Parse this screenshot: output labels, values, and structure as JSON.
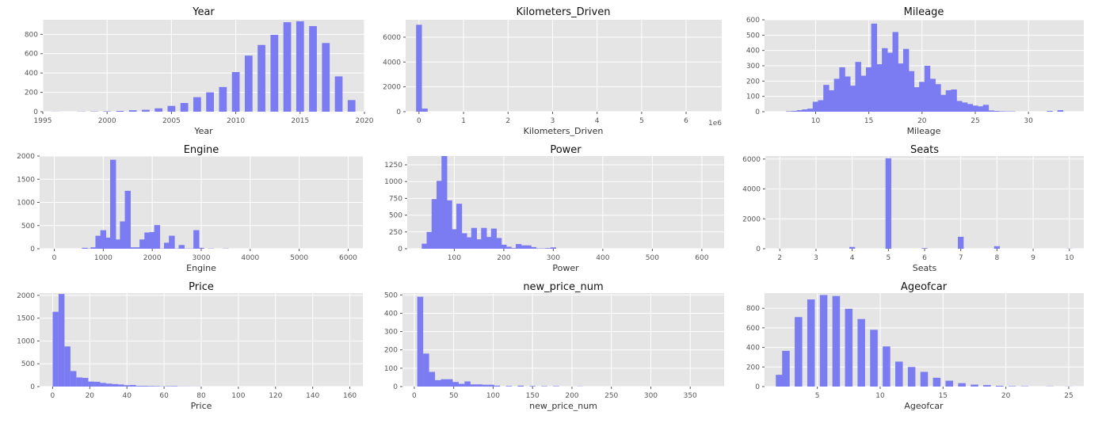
{
  "figure": {
    "background": "#ffffff",
    "panel_background": "#e5e5e5",
    "grid_color": "#ffffff",
    "bar_color": "#7b7bf2"
  },
  "chart_data": [
    {
      "type": "bar",
      "title": "Year",
      "xlabel": "Year",
      "xlim": [
        1995,
        2020
      ],
      "ylim": [
        0,
        950
      ],
      "xticks": [
        1995,
        2000,
        2005,
        2010,
        2015,
        2020
      ],
      "yticks": [
        0,
        200,
        400,
        600,
        800
      ],
      "bin_width": 0.6,
      "x": [
        1996,
        1998,
        1999,
        2000,
        2001,
        2002,
        2003,
        2004,
        2005,
        2006,
        2007,
        2008,
        2009,
        2010,
        2011,
        2012,
        2013,
        2014,
        2015,
        2016,
        2017,
        2018,
        2019
      ],
      "values": [
        1,
        2,
        3,
        4,
        8,
        15,
        20,
        35,
        60,
        90,
        150,
        200,
        255,
        410,
        580,
        690,
        795,
        925,
        935,
        885,
        710,
        365,
        120
      ]
    },
    {
      "type": "bar",
      "title": "Kilometers_Driven",
      "xlabel": "Kilometers_Driven",
      "axis_offset_text": "1e6",
      "xlim": [
        -0.3,
        6.8
      ],
      "ylim": [
        0,
        7400
      ],
      "xticks": [
        0,
        1,
        2,
        3,
        4,
        5,
        6
      ],
      "yticks": [
        0,
        2000,
        4000,
        6000
      ],
      "bin_width": 0.13,
      "x": [
        0.0,
        0.13
      ],
      "values": [
        7000,
        250
      ]
    },
    {
      "type": "bar",
      "title": "Mileage",
      "xlabel": "Mileage",
      "xlim": [
        5.2,
        35.2
      ],
      "ylim": [
        0,
        600
      ],
      "xticks": [
        10,
        15,
        20,
        25,
        30
      ],
      "yticks": [
        0,
        100,
        200,
        300,
        400,
        500,
        600
      ],
      "bin_width": 0.55,
      "x": [
        7.5,
        8.0,
        8.5,
        9.0,
        9.5,
        10.0,
        10.5,
        11.0,
        11.5,
        12.0,
        12.5,
        13.0,
        13.5,
        14.0,
        14.5,
        15.0,
        15.5,
        16.0,
        16.5,
        17.0,
        17.5,
        18.0,
        18.5,
        19.0,
        19.5,
        20.0,
        20.5,
        21.0,
        21.5,
        22.0,
        22.5,
        23.0,
        23.5,
        24.0,
        24.5,
        25.0,
        25.5,
        26.0,
        26.5,
        27.0,
        27.5,
        28.0,
        28.5,
        32.0,
        33.0
      ],
      "values": [
        3,
        5,
        10,
        15,
        20,
        65,
        75,
        175,
        140,
        215,
        290,
        230,
        170,
        325,
        235,
        290,
        575,
        310,
        415,
        385,
        520,
        315,
        410,
        265,
        160,
        195,
        300,
        215,
        180,
        110,
        140,
        145,
        70,
        60,
        50,
        40,
        35,
        45,
        8,
        5,
        3,
        2,
        2,
        5,
        10
      ],
      "x_start": 7.5,
      "bin_step": 0.5
    },
    {
      "type": "bar",
      "title": "Engine",
      "xlabel": "Engine",
      "xlim": [
        -300,
        6300
      ],
      "ylim": [
        0,
        2000
      ],
      "xticks": [
        0,
        1000,
        2000,
        3000,
        4000,
        5000,
        6000
      ],
      "yticks": [
        0,
        500,
        1000,
        1500,
        2000
      ],
      "bin_width": 120,
      "x": [
        624,
        750,
        800,
        900,
        1000,
        1100,
        1200,
        1300,
        1400,
        1500,
        1600,
        1700,
        1800,
        1900,
        2000,
        2100,
        2200,
        2300,
        2400,
        2500,
        2600,
        2700,
        2800,
        2900,
        3000,
        3200,
        3500
      ],
      "values": [
        20,
        5,
        30,
        280,
        400,
        240,
        1920,
        200,
        590,
        1250,
        30,
        30,
        200,
        350,
        360,
        510,
        5,
        130,
        280,
        5,
        80,
        5,
        5,
        400,
        20,
        5,
        5
      ]
    },
    {
      "type": "bar",
      "title": "Power",
      "xlabel": "Power",
      "xlim": [
        5,
        645
      ],
      "ylim": [
        0,
        1380
      ],
      "xticks": [
        100,
        200,
        300,
        400,
        500,
        600
      ],
      "yticks": [
        0,
        250,
        500,
        750,
        1000,
        1250
      ],
      "bin_width": 11.5,
      "x": [
        40,
        50,
        60,
        70,
        80,
        90,
        100,
        110,
        120,
        130,
        140,
        150,
        160,
        170,
        180,
        190,
        200,
        210,
        220,
        230,
        240,
        250,
        260,
        270,
        280,
        290,
        300
      ],
      "values": [
        75,
        250,
        740,
        1010,
        1380,
        720,
        290,
        670,
        230,
        170,
        310,
        140,
        310,
        175,
        300,
        160,
        60,
        30,
        10,
        70,
        50,
        50,
        25,
        5,
        5,
        10,
        20
      ]
    },
    {
      "type": "bar",
      "title": "Seats",
      "xlabel": "Seats",
      "xlim": [
        1.6,
        10.4
      ],
      "ylim": [
        0,
        6200
      ],
      "xticks": [
        2,
        3,
        4,
        5,
        6,
        7,
        8,
        9,
        10
      ],
      "yticks": [
        0,
        2000,
        4000,
        6000
      ],
      "bin_width": 0.16,
      "x": [
        2,
        4,
        5,
        6,
        7,
        8,
        9,
        10
      ],
      "values": [
        5,
        120,
        6050,
        40,
        800,
        170,
        5,
        10
      ]
    },
    {
      "type": "bar",
      "title": "Price",
      "xlabel": "Price",
      "xlim": [
        -7,
        167
      ],
      "ylim": [
        0,
        2050
      ],
      "xticks": [
        0,
        20,
        40,
        60,
        80,
        100,
        120,
        140,
        160
      ],
      "yticks": [
        0,
        500,
        1000,
        1500,
        2000
      ],
      "bin_width": 3.2,
      "x": [
        1.6,
        4.8,
        8.0,
        11.2,
        14.4,
        17.6,
        20.8,
        24.0,
        27.2,
        30.4,
        33.6,
        36.8,
        40.0,
        43.2,
        46.4,
        49.6,
        52.8,
        56.0,
        59.2,
        62.4,
        65.6,
        68.8,
        72.0,
        75.2,
        78.4
      ],
      "values": [
        1640,
        2030,
        880,
        340,
        200,
        190,
        110,
        105,
        80,
        65,
        55,
        45,
        30,
        35,
        15,
        15,
        12,
        10,
        5,
        8,
        10,
        3,
        3,
        2,
        2
      ]
    },
    {
      "type": "bar",
      "title": "new_price_num",
      "xlabel": "new_price_num",
      "xlim": [
        -15,
        393
      ],
      "ylim": [
        0,
        510
      ],
      "xticks": [
        0,
        50,
        100,
        150,
        200,
        250,
        300,
        350
      ],
      "yticks": [
        0,
        100,
        200,
        300,
        400,
        500
      ],
      "bin_width": 7.6,
      "x": [
        7.5,
        15.0,
        22.5,
        30.0,
        37.5,
        45.0,
        52.5,
        60.0,
        67.5,
        75.0,
        82.5,
        90.0,
        97.5,
        105.0,
        120.0,
        135.0,
        150.0,
        165.0,
        180.0,
        210.0
      ],
      "values": [
        490,
        180,
        80,
        35,
        40,
        40,
        25,
        15,
        28,
        12,
        12,
        10,
        10,
        5,
        3,
        5,
        3,
        2,
        2,
        1
      ]
    },
    {
      "type": "bar",
      "title": "Ageofcar",
      "xlabel": "Ageofcar",
      "xlim": [
        0.8,
        26.2
      ],
      "ylim": [
        0,
        955
      ],
      "xticks": [
        5,
        10,
        15,
        20,
        25
      ],
      "yticks": [
        0,
        200,
        400,
        600,
        800
      ],
      "bin_width": 0.6,
      "x": [
        2,
        2.5,
        3.5,
        4.5,
        5.5,
        6.5,
        7.5,
        8.5,
        9.5,
        10.5,
        11.5,
        12.5,
        13.5,
        14.5,
        15.5,
        16.5,
        17.5,
        18.5,
        19.5,
        20.5,
        21.5,
        23.5,
        25
      ],
      "values": [
        120,
        365,
        710,
        890,
        935,
        925,
        795,
        690,
        580,
        410,
        255,
        200,
        150,
        90,
        60,
        35,
        20,
        15,
        8,
        4,
        3,
        2,
        1
      ]
    }
  ]
}
